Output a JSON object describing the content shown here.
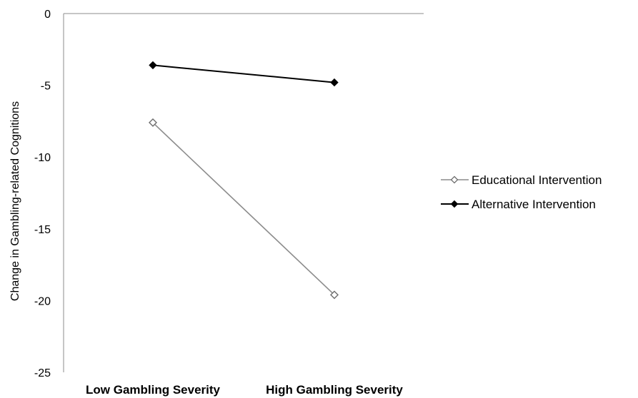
{
  "chart_data": {
    "type": "line",
    "title": "",
    "xlabel": "",
    "ylabel": "Change in Gambling-related Cognitions",
    "categories": [
      "Low Gambling Severity",
      "High Gambling Severity"
    ],
    "ylim": [
      -25,
      0
    ],
    "yticks": [
      0,
      -5,
      -10,
      -15,
      -20,
      -25
    ],
    "grid": false,
    "legend_position": "right",
    "series": [
      {
        "name": "Educational Intervention",
        "values": [
          -7.6,
          -19.6
        ],
        "marker": "open-diamond",
        "color": "#7a7a7a"
      },
      {
        "name": "Alternative Intervention",
        "values": [
          -3.6,
          -4.8
        ],
        "marker": "filled-diamond",
        "color": "#000000"
      }
    ]
  }
}
